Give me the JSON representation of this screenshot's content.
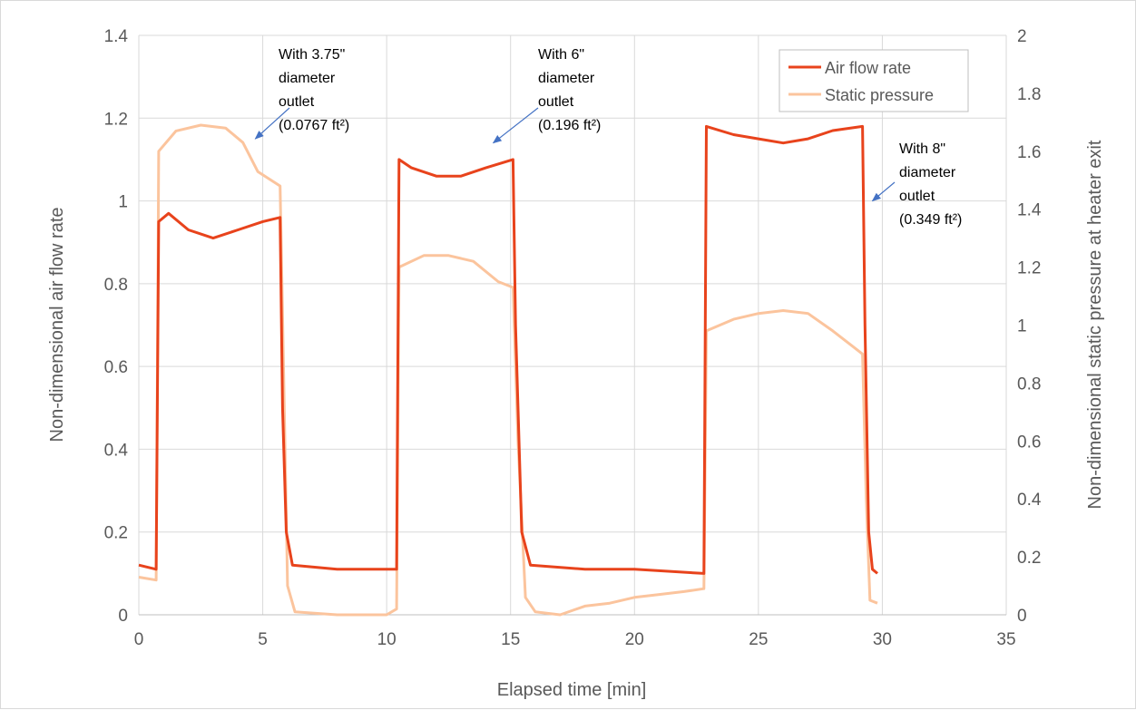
{
  "chart_data": {
    "type": "line",
    "title": "",
    "xlabel": "Elapsed time [min]",
    "ylabel": "Non-dimensional air flow rate",
    "y2label": "Non-dimensional static pressure at heater exit",
    "xlim": [
      0,
      35
    ],
    "ylim": [
      0,
      1.4
    ],
    "y2lim": [
      0,
      2
    ],
    "x_ticks": [
      "0",
      "5",
      "10",
      "15",
      "20",
      "25",
      "30",
      "35"
    ],
    "y_ticks": [
      "0",
      "0.2",
      "0.4",
      "0.6",
      "0.8",
      "1",
      "1.2",
      "1.4"
    ],
    "y2_ticks": [
      "0",
      "0.2",
      "0.4",
      "0.6",
      "0.8",
      "1",
      "1.2",
      "1.4",
      "1.6",
      "1.8",
      "2"
    ],
    "grid": true,
    "legend": {
      "position": "top-right"
    },
    "series": [
      {
        "name": "Air flow rate",
        "axis": "left",
        "color": "#e8431c",
        "points": [
          [
            0,
            0.12
          ],
          [
            0.7,
            0.11
          ],
          [
            0.8,
            0.95
          ],
          [
            1.2,
            0.97
          ],
          [
            2,
            0.93
          ],
          [
            3,
            0.91
          ],
          [
            4,
            0.93
          ],
          [
            5,
            0.95
          ],
          [
            5.7,
            0.96
          ],
          [
            5.8,
            0.5
          ],
          [
            5.95,
            0.2
          ],
          [
            6.2,
            0.12
          ],
          [
            8,
            0.11
          ],
          [
            10.4,
            0.11
          ],
          [
            10.5,
            1.1
          ],
          [
            11,
            1.08
          ],
          [
            12,
            1.06
          ],
          [
            13,
            1.06
          ],
          [
            14,
            1.08
          ],
          [
            15.1,
            1.1
          ],
          [
            15.2,
            0.7
          ],
          [
            15.45,
            0.2
          ],
          [
            15.8,
            0.12
          ],
          [
            18,
            0.11
          ],
          [
            20,
            0.11
          ],
          [
            22.8,
            0.1
          ],
          [
            22.9,
            1.18
          ],
          [
            24,
            1.16
          ],
          [
            25,
            1.15
          ],
          [
            26,
            1.14
          ],
          [
            27,
            1.15
          ],
          [
            28,
            1.17
          ],
          [
            29.2,
            1.18
          ],
          [
            29.3,
            0.7
          ],
          [
            29.45,
            0.2
          ],
          [
            29.6,
            0.11
          ],
          [
            29.8,
            0.1
          ]
        ]
      },
      {
        "name": "Static pressure",
        "axis": "right",
        "color": "#fbc49d",
        "points": [
          [
            0,
            0.13
          ],
          [
            0.7,
            0.12
          ],
          [
            0.8,
            1.6
          ],
          [
            1.5,
            1.67
          ],
          [
            2.5,
            1.69
          ],
          [
            3.5,
            1.68
          ],
          [
            4.2,
            1.63
          ],
          [
            4.8,
            1.53
          ],
          [
            5.7,
            1.48
          ],
          [
            5.85,
            0.8
          ],
          [
            6.0,
            0.1
          ],
          [
            6.3,
            0.01
          ],
          [
            8,
            0.0
          ],
          [
            10,
            0.0
          ],
          [
            10.4,
            0.02
          ],
          [
            10.5,
            1.2
          ],
          [
            11.5,
            1.24
          ],
          [
            12.5,
            1.24
          ],
          [
            13.5,
            1.22
          ],
          [
            14.5,
            1.15
          ],
          [
            15.1,
            1.13
          ],
          [
            15.3,
            0.6
          ],
          [
            15.6,
            0.06
          ],
          [
            16,
            0.01
          ],
          [
            17,
            0.0
          ],
          [
            18,
            0.03
          ],
          [
            19,
            0.04
          ],
          [
            20,
            0.06
          ],
          [
            21,
            0.07
          ],
          [
            22,
            0.08
          ],
          [
            22.8,
            0.09
          ],
          [
            22.9,
            0.98
          ],
          [
            24,
            1.02
          ],
          [
            25,
            1.04
          ],
          [
            26,
            1.05
          ],
          [
            27,
            1.04
          ],
          [
            28,
            0.98
          ],
          [
            29.2,
            0.9
          ],
          [
            29.35,
            0.4
          ],
          [
            29.5,
            0.05
          ],
          [
            29.8,
            0.04
          ]
        ]
      }
    ],
    "annotations": [
      {
        "lines": [
          "With 3.75\"",
          "diameter",
          "outlet",
          "(0.0767 ft²)"
        ],
        "arrow_to": [
          4.7,
          1.15
        ]
      },
      {
        "lines": [
          "With 6\"",
          "diameter",
          "outlet",
          "(0.196 ft²)"
        ],
        "arrow_to": [
          14.3,
          1.14
        ]
      },
      {
        "lines": [
          "With 8\"",
          "diameter",
          "outlet",
          "(0.349 ft²)"
        ],
        "arrow_to": [
          29.6,
          1.0
        ]
      }
    ]
  }
}
